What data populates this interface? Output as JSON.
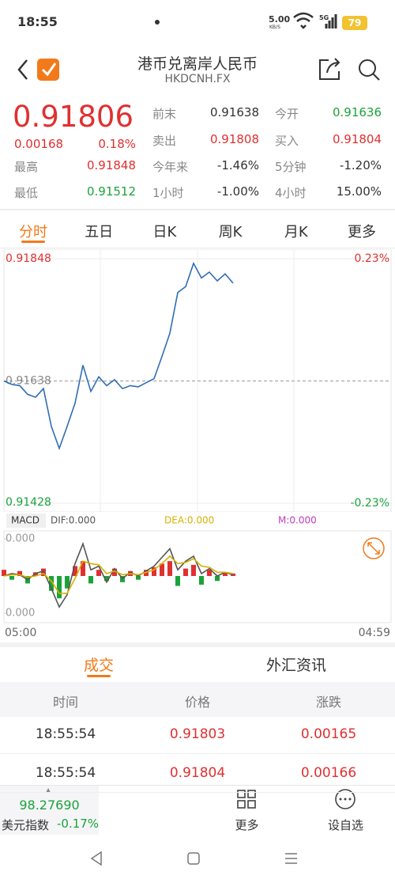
{
  "status": {
    "time": "18:55",
    "speed": "5.00",
    "speed_unit": "KB/S",
    "network": "5G",
    "battery": "79"
  },
  "header": {
    "title": "港币兑离岸人民币",
    "code": "HKDCNH.FX"
  },
  "quote": {
    "price": "0.91806",
    "change": "0.00168",
    "change_pct": "0.18%",
    "stats": [
      {
        "label": "最高",
        "value": "0.91848",
        "color": "#e03030"
      },
      {
        "label": "最低",
        "value": "0.91512",
        "color": "#1aa33a"
      },
      {
        "label": "前末",
        "value": "0.91638",
        "color": "#333333"
      },
      {
        "label": "今开",
        "value": "0.91636",
        "color": "#1aa33a"
      },
      {
        "label": "卖出",
        "value": "0.91808",
        "color": "#e03030"
      },
      {
        "label": "买入",
        "value": "0.91804",
        "color": "#e03030"
      },
      {
        "label": "今年来",
        "value": "-1.46%",
        "color": "#333333"
      },
      {
        "label": "5分钟",
        "value": "-1.20%",
        "color": "#333333"
      },
      {
        "label": "1小时",
        "value": "-1.00%",
        "color": "#333333"
      },
      {
        "label": "4小时",
        "value": "15.00%",
        "color": "#333333"
      }
    ]
  },
  "tabs": [
    "分时",
    "五日",
    "日K",
    "周K",
    "月K",
    "更多"
  ],
  "chart_data": [
    {
      "type": "line",
      "color": "#2f6db5",
      "ylim": [
        0.91428,
        0.91848
      ],
      "yticks": [
        0.91428,
        0.91638,
        0.91848
      ],
      "y2lim": [
        -0.23,
        0.23
      ],
      "y2ticks": [
        {
          "value": -0.23,
          "label": "-0.23%"
        },
        {
          "value": 0.23,
          "label": "0.23%"
        }
      ],
      "values": [
        0.91638,
        0.91632,
        0.9163,
        0.91615,
        0.9161,
        0.91625,
        0.9156,
        0.91522,
        0.9156,
        0.916,
        0.91665,
        0.9162,
        0.91645,
        0.9163,
        0.9164,
        0.91625,
        0.9163,
        0.91628,
        0.91635,
        0.91642,
        0.9168,
        0.9172,
        0.9179,
        0.918,
        0.9184,
        0.91815,
        0.91825,
        0.9181,
        0.91822,
        0.91806,
        null,
        null,
        null,
        null,
        null,
        null,
        null,
        null,
        null,
        null,
        null,
        null,
        null,
        null,
        null,
        null,
        null,
        null,
        null,
        null
      ]
    },
    {
      "type": "macd",
      "title": "MACD",
      "ylim": [
        -0.0003,
        0.0003
      ],
      "yticks": [
        {
          "value": -0.0003,
          "label": "0.000"
        },
        {
          "value": 0.0003,
          "label": "0.000"
        }
      ],
      "xlabels": [
        "05:00",
        "04:59"
      ],
      "series": [
        {
          "name": "DIF:0.000",
          "color": "#555555",
          "values": [
            0,
            2e-05,
            1e-05,
            -3e-05,
            2e-05,
            4e-05,
            -0.0001,
            -0.00025,
            -0.00015,
            0.0001,
            0.00026,
            5e-05,
            8e-05,
            -5e-05,
            6e-05,
            -2e-05,
            3e-05,
            0,
            4e-05,
            8e-05,
            0.00015,
            0.00022,
            5e-05,
            0.00012,
            0.00016,
            2e-05,
            6e-05,
            0,
            3e-05,
            1e-05,
            null,
            null,
            null,
            null,
            null,
            null,
            null,
            null,
            null,
            null,
            null,
            null,
            null,
            null,
            null,
            null,
            null,
            null,
            null,
            null
          ]
        },
        {
          "name": "DEA:0.000",
          "color": "#d8b000",
          "values": [
            0,
            1e-05,
            1e-05,
            -1e-05,
            0,
            2e-05,
            -4e-05,
            -0.00014,
            -0.00014,
            -2e-05,
            0.00012,
            0.0001,
            9e-05,
            2e-05,
            4e-05,
            1e-05,
            2e-05,
            1e-05,
            3e-05,
            5e-05,
            0.0001,
            0.00016,
            0.0001,
            0.00011,
            0.00014,
            8e-05,
            7e-05,
            3e-05,
            3e-05,
            2e-05,
            null,
            null,
            null,
            null,
            null,
            null,
            null,
            null,
            null,
            null,
            null,
            null,
            null,
            null,
            null,
            null,
            null,
            null,
            null,
            null
          ]
        },
        {
          "name": "M:0.000",
          "color": "#c03cc0",
          "kind": "bar",
          "values": [
            5e-05,
            -3e-05,
            4e-05,
            -6e-05,
            3e-05,
            6e-05,
            -0.00012,
            -0.00018,
            -0.0001,
            8e-05,
            0.00012,
            -6e-05,
            5e-05,
            -4e-05,
            6e-05,
            -5e-05,
            4e-05,
            -3e-05,
            5e-05,
            7e-05,
            0.0001,
            0.00012,
            -8e-05,
            6e-05,
            9e-05,
            -7e-05,
            5e-05,
            -4e-05,
            3e-05,
            2e-05,
            null,
            null,
            null,
            null,
            null,
            null,
            null,
            null,
            null,
            null,
            null,
            null,
            null,
            null,
            null,
            null,
            null,
            null,
            null,
            null
          ]
        }
      ]
    }
  ],
  "trade_tabs": [
    "成交",
    "外汇资讯"
  ],
  "table": {
    "header": [
      "时间",
      "价格",
      "涨跌"
    ],
    "rows": [
      [
        "18:55:54",
        "0.91803",
        "0.00165"
      ],
      [
        "18:55:54",
        "0.91804",
        "0.00166"
      ]
    ]
  },
  "bottom": {
    "index_value": "98.27690",
    "index_name": "美元指数",
    "index_change": "-0.17%",
    "more": "更多",
    "watch": "设自选"
  }
}
